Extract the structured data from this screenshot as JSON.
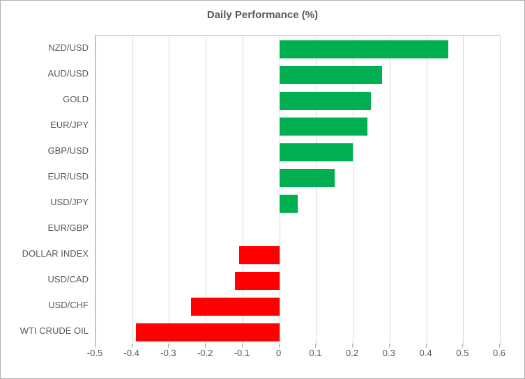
{
  "chart": {
    "type": "bar-horizontal",
    "title": "Daily Performance (%)",
    "title_fontsize": 15,
    "title_weight": "bold",
    "background_color": "#ffffff",
    "border_color": "#b0b0b0",
    "grid_color": "#d9d9d9",
    "label_color": "#595959",
    "label_fontsize": 13,
    "positive_color": "#00b050",
    "negative_color": "#ff0000",
    "xlim_min": -0.5,
    "xlim_max": 0.6,
    "xtick_step": 0.1,
    "xticks": [
      "-0.5",
      "-0.4",
      "-0.3",
      "-0.2",
      "-0.1",
      "0",
      "0.1",
      "0.2",
      "0.3",
      "0.4",
      "0.5",
      "0.6"
    ],
    "xtick_values": [
      -0.5,
      -0.4,
      -0.3,
      -0.2,
      -0.1,
      0,
      0.1,
      0.2,
      0.3,
      0.4,
      0.5,
      0.6
    ],
    "bar_height_ratio": 0.7,
    "categories": [
      "NZD/USD",
      "AUD/USD",
      "GOLD",
      "EUR/JPY",
      "GBP/USD",
      "EUR/USD",
      "USD/JPY",
      "EUR/GBP",
      "DOLLAR INDEX",
      "USD/CAD",
      "USD/CHF",
      "WTI CRUDE OIL"
    ],
    "values": [
      0.46,
      0.28,
      0.25,
      0.24,
      0.2,
      0.15,
      0.05,
      0.0,
      -0.11,
      -0.12,
      -0.24,
      -0.39
    ]
  }
}
